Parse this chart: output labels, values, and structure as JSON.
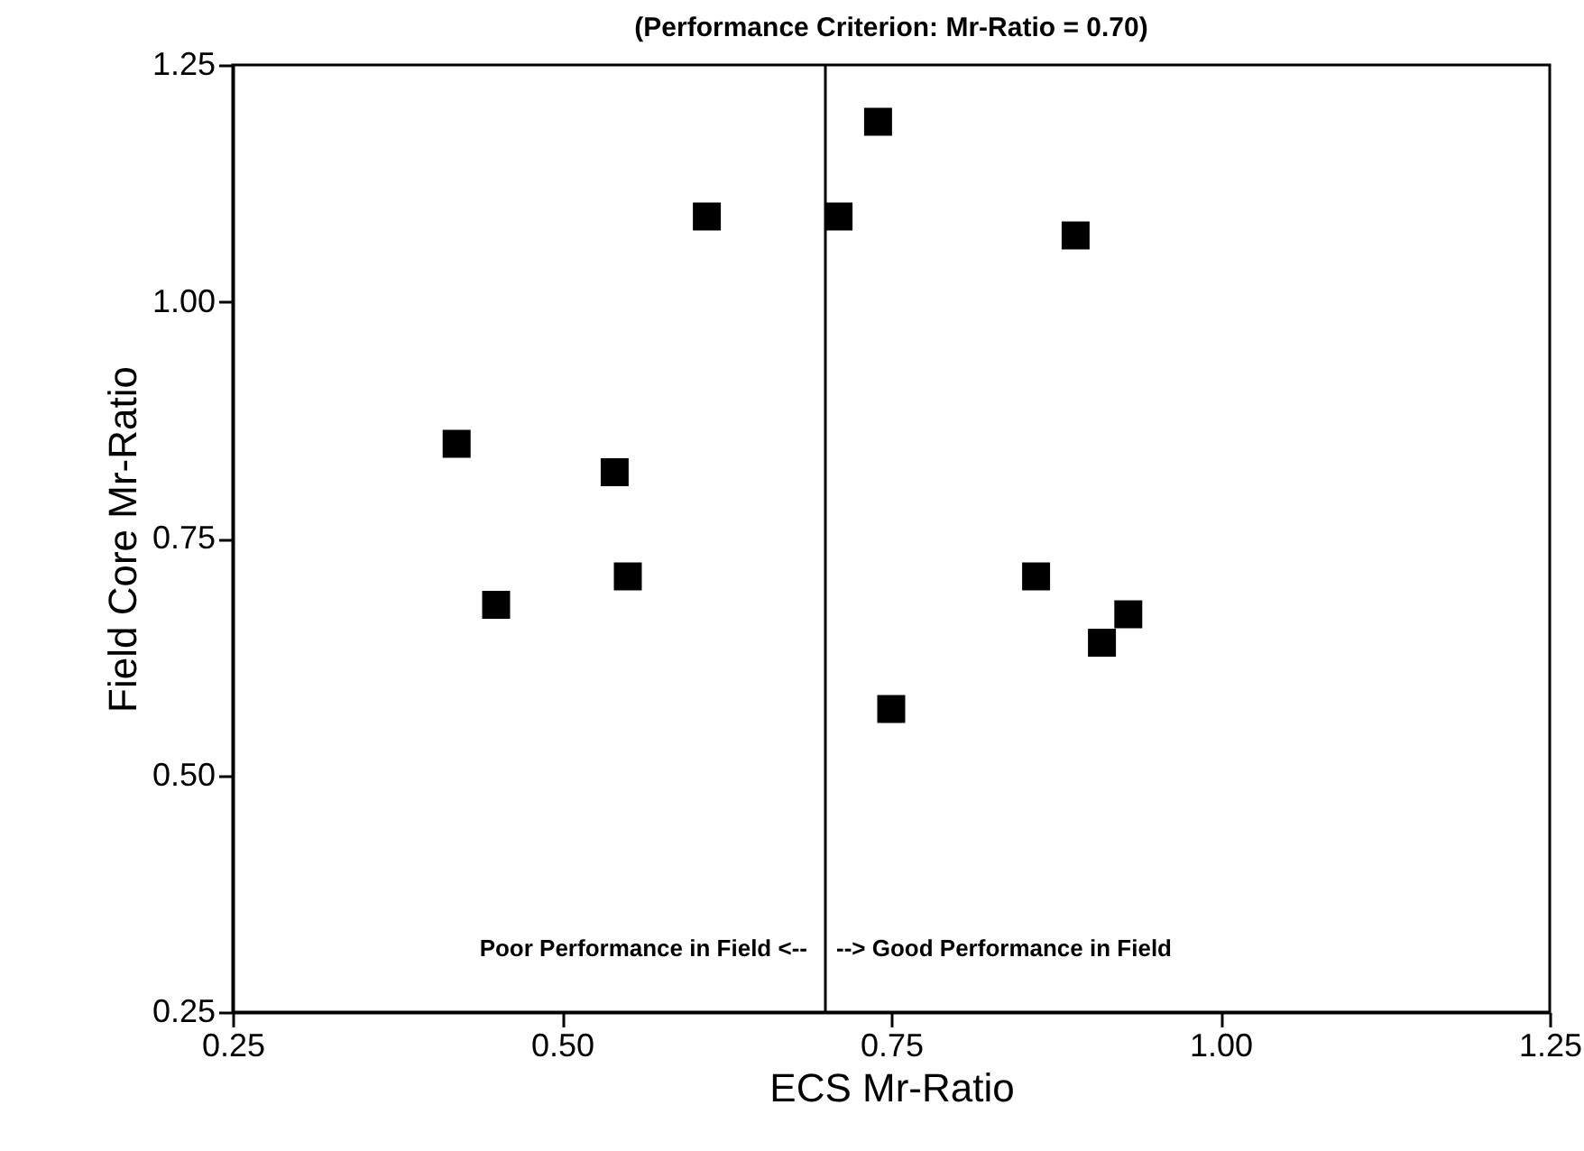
{
  "chart_data": {
    "type": "scatter",
    "title": "(Performance Criterion:  Mr-Ratio = 0.70)",
    "xlabel": "ECS Mr-Ratio",
    "ylabel": "Field Core Mr-Ratio",
    "x": [
      0.42,
      0.45,
      0.54,
      0.55,
      0.61,
      0.71,
      0.74,
      0.89,
      0.86,
      0.91,
      0.93,
      0.75
    ],
    "series": [
      {
        "color": "#000000",
        "values": [
          0.85,
          0.68,
          0.82,
          0.71,
          1.09,
          1.09,
          1.19,
          1.07,
          0.71,
          0.64,
          0.67,
          0.57
        ]
      }
    ],
    "xlim": [
      0.25,
      1.25
    ],
    "xticks": [
      {
        "value": 0.25,
        "label": "0.25"
      },
      {
        "value": 0.5,
        "label": "0.50"
      },
      {
        "value": 0.75,
        "label": "0.75"
      },
      {
        "value": 1,
        "label": "1.00"
      },
      {
        "value": 1.25,
        "label": "1.25"
      }
    ],
    "ylim": [
      0.25,
      1.25
    ],
    "yticks": [
      {
        "value": 0.25,
        "label": "0.25"
      },
      {
        "value": 0.5,
        "label": "0.50"
      },
      {
        "value": 0.75,
        "label": "0.75"
      },
      {
        "value": 1,
        "label": "1.00"
      },
      {
        "value": 1.25,
        "label": "1.25"
      }
    ],
    "ref_lines": [
      {
        "axis": "x",
        "value": 0.7,
        "color": "#000000"
      }
    ],
    "annotations": [
      "Poor Performance in Field <--",
      "--> Good Performance in Field"
    ],
    "marker": "square",
    "grid": false
  }
}
